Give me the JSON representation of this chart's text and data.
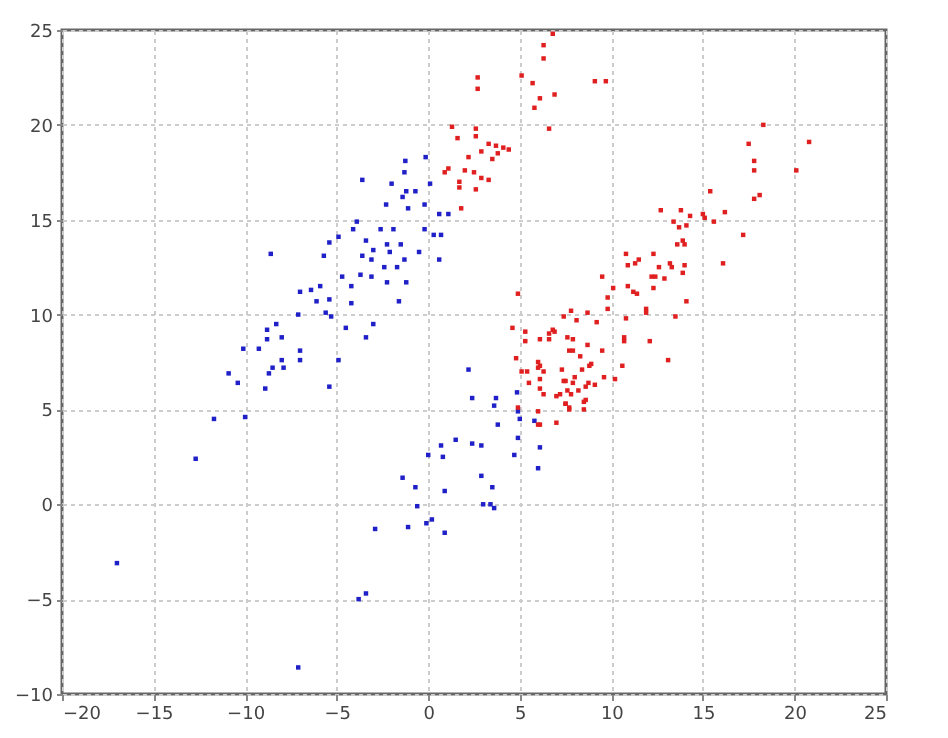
{
  "chart_data": {
    "type": "scatter",
    "xlim": [
      -20,
      25
    ],
    "ylim": [
      -10,
      25
    ],
    "xticks": [
      -20,
      -15,
      -10,
      -5,
      0,
      5,
      10,
      15,
      20,
      25
    ],
    "yticks": [
      -10,
      -5,
      0,
      5,
      10,
      15,
      20,
      25
    ],
    "grid": true,
    "marker": "square",
    "series": [
      {
        "color": "#2020c8",
        "x": [
          -1.25,
          -0.14,
          -1.3,
          -3.6,
          -2.0,
          0.1,
          -0.7,
          -1.2,
          -2.3,
          -1.4,
          -1.1,
          -0.2,
          0.6,
          1.1,
          -3.9,
          -2.6,
          -4.1,
          -1.9,
          -0.2,
          0.7,
          0.3,
          -8.6,
          -5.4,
          -4.9,
          -3.4,
          -3.0,
          -2.25,
          -2.1,
          -1.5,
          -1.3,
          -0.5,
          -5.7,
          -3.6,
          -3.1,
          -2.4,
          -1.7,
          0.6,
          -4.7,
          -3.7,
          -3.1,
          -2.25,
          -1.2,
          -5.9,
          -6.4,
          -7.0,
          -6.1,
          -5.4,
          -4.2,
          -4.2,
          -5.6,
          -5.3,
          -7.1,
          -4.5,
          -3.0,
          -3.4,
          -1.6,
          -8.3,
          -8.8,
          -8.8,
          -8.0,
          -7.0,
          -10.1,
          -9.25,
          -8.0,
          -7.0,
          -4.9,
          -10.9,
          -10.4,
          -8.5,
          -8.7,
          -7.9,
          -8.9,
          -5.4,
          -11.7,
          -10.0,
          -12.7,
          -17.0,
          -7.1,
          -3.8,
          -3.4,
          -2.9,
          -1.4,
          -0.7,
          -0.6,
          -1.1,
          -0.1,
          0.2,
          0.9,
          0.9,
          0,
          0.8,
          0.7,
          1.5,
          2.4,
          2.2,
          2.4,
          3.7,
          3.6,
          4.85,
          3.8,
          5.0,
          4.9,
          5.8,
          6.1,
          4.7,
          4.9,
          2.9,
          6.0,
          2.9,
          3.5,
          3.4,
          3.0,
          3.6
        ],
        "values": [
          18.1,
          18.3,
          17.5,
          17.1,
          16.9,
          16.9,
          16.5,
          16.5,
          15.8,
          16.2,
          15.6,
          15.8,
          15.3,
          15.3,
          14.9,
          14.5,
          14.5,
          14.5,
          14.5,
          14.2,
          14.2,
          13.2,
          13.8,
          14.1,
          13.9,
          13.4,
          13.7,
          13.3,
          13.7,
          12.9,
          13.3,
          13.1,
          13.1,
          12.9,
          12.5,
          12.5,
          12.9,
          12.0,
          12.1,
          12.0,
          11.7,
          11.7,
          11.5,
          11.3,
          11.2,
          10.7,
          10.8,
          11.5,
          10.6,
          10.1,
          9.9,
          10.0,
          9.3,
          9.5,
          8.8,
          10.7,
          9.5,
          9.2,
          8.7,
          8.8,
          8.1,
          8.2,
          8.2,
          7.6,
          7.6,
          7.6,
          6.9,
          6.4,
          7.2,
          6.9,
          7.2,
          6.1,
          6.2,
          4.5,
          4.6,
          2.4,
          -3.1,
          -8.6,
          -5.0,
          -4.7,
          -1.3,
          1.4,
          0.9,
          -0.1,
          -1.2,
          -1.0,
          -0.8,
          -1.5,
          0.7,
          2.6,
          2.5,
          3.1,
          3.4,
          3.2,
          7.1,
          5.6,
          5.6,
          5.2,
          5.9,
          4.2,
          4.5,
          4.9,
          4.4,
          3.0,
          2.6,
          3.5,
          3.1,
          1.9,
          1.5,
          0.9,
          0,
          0,
          -0.2
        ]
      },
      {
        "color": "#e02020",
        "x": [
          6.8,
          6.3,
          6.3,
          5.1,
          5.7,
          6.1,
          6.9,
          5.8,
          2.7,
          2.7,
          6.6,
          1.3,
          2.6,
          1.6,
          2.6,
          3.3,
          3.7,
          4.1,
          4.4,
          2.9,
          3.8,
          3.5,
          2.2,
          1.1,
          2.0,
          2.5,
          2.9,
          1.7,
          3.3,
          0.9,
          1.7,
          2.6,
          1.8,
          9.1,
          9.7,
          18.3,
          17.5,
          20.8,
          17.8,
          17.8,
          20.1,
          18.1,
          17.8,
          15.4,
          12.7,
          13.8,
          14.3,
          15.0,
          15.1,
          15.6,
          16.2,
          13.4,
          13.7,
          14.1,
          17.2,
          13.9,
          13.6,
          14.0,
          10.8,
          11.5,
          11.3,
          10.9,
          12.3,
          13.2,
          12.6,
          13.3,
          14.0,
          16.1,
          12.2,
          12.4,
          12.9,
          9.5,
          10.1,
          9.8,
          11.2,
          10.9,
          11.4,
          12.3,
          13.9,
          14.1,
          9.8,
          11.9,
          11.9,
          13.5,
          10.8,
          7.8,
          7.4,
          8.7,
          9.2,
          6.6,
          6.8,
          7.6,
          6.6,
          10.7,
          10.7,
          12.1,
          8.7,
          7.9,
          9.5,
          8.3,
          13.1,
          8.8,
          6.1,
          6.3,
          10.6,
          8.4,
          8.0,
          7.4,
          9.6,
          8.6,
          9.1,
          8.2,
          7.6,
          6.3,
          7.0,
          7.5,
          8.5,
          7.7,
          8.5,
          7.0,
          6.1,
          4.9,
          8.1,
          4.6,
          5.3,
          5.3,
          6.9,
          6.1,
          7.9,
          7.7,
          4.8,
          6.0,
          6.0,
          5.1,
          5.4,
          6.1,
          5.5,
          7.3,
          8.9,
          7.5,
          7.9,
          8.75,
          10.2,
          6.1,
          7.2,
          7.8,
          8.6,
          7.5,
          7.7,
          6.0,
          4.9,
          6.0
        ],
        "values": [
          24.8,
          24.2,
          23.5,
          22.6,
          22.2,
          21.4,
          21.6,
          20.9,
          22.5,
          21.9,
          19.8,
          19.9,
          19.8,
          19.3,
          19.4,
          19.0,
          18.9,
          18.8,
          18.7,
          18.6,
          18.5,
          18.2,
          18.3,
          17.7,
          17.6,
          17.5,
          17.2,
          17.0,
          17.1,
          17.5,
          16.7,
          16.6,
          15.6,
          22.3,
          22.3,
          20.0,
          19.0,
          19.1,
          18.1,
          17.6,
          17.6,
          16.3,
          16.1,
          16.5,
          15.5,
          15.5,
          15.2,
          15.3,
          15.1,
          14.9,
          15.4,
          14.9,
          14.6,
          14.7,
          14.2,
          13.9,
          13.7,
          13.7,
          13.2,
          12.9,
          12.7,
          12.6,
          13.2,
          12.7,
          12.5,
          12.5,
          12.6,
          12.7,
          12.0,
          12.0,
          11.9,
          12.0,
          11.4,
          10.9,
          11.2,
          11.5,
          11.1,
          11.4,
          12.2,
          10.7,
          10.3,
          10.3,
          10.1,
          9.9,
          9.8,
          10.2,
          9.9,
          10.1,
          9.6,
          9.0,
          9.2,
          8.8,
          8.7,
          8.8,
          8.6,
          8.6,
          8.4,
          8.1,
          8.1,
          7.8,
          7.6,
          7.3,
          7.3,
          7.0,
          7.3,
          7.1,
          6.7,
          6.5,
          6.7,
          6.2,
          6.3,
          6.0,
          6.0,
          5.8,
          5.7,
          5.3,
          5.4,
          5.0,
          5.0,
          4.3,
          4.2,
          11.1,
          9.7,
          9.3,
          9.1,
          8.6,
          9.1,
          8.7,
          8.7,
          8.1,
          7.7,
          7.5,
          7.2,
          7.0,
          7.0,
          6.6,
          6.4,
          7.1,
          7.4,
          6.5,
          6.4,
          6.4,
          6.6,
          6.1,
          5.8,
          5.8,
          5.5,
          5.3,
          5.1,
          4.9,
          5.1,
          4.2
        ]
      }
    ]
  }
}
